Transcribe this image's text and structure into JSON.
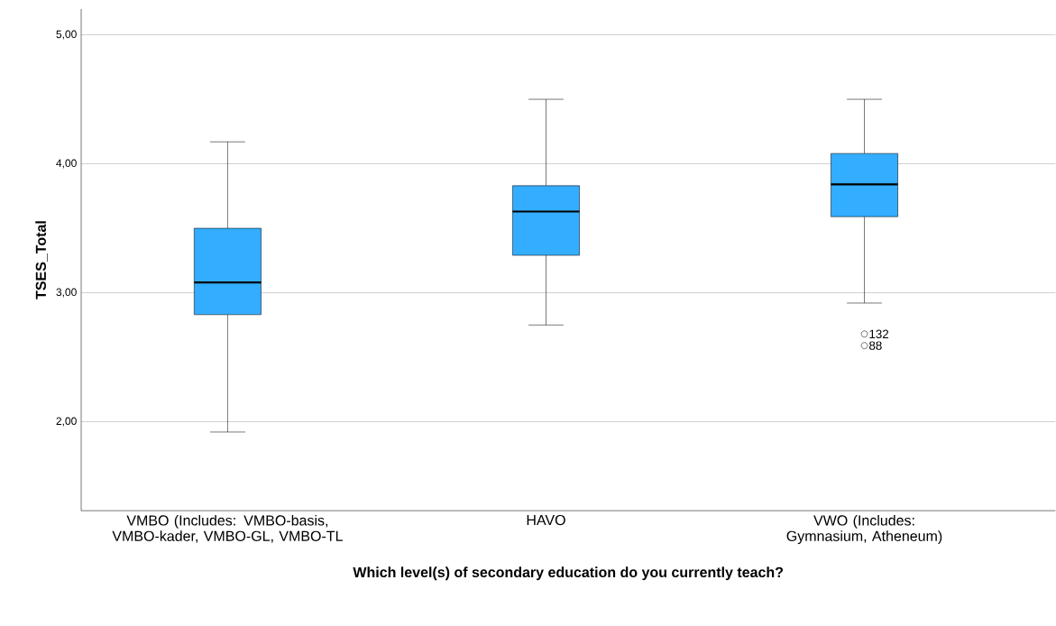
{
  "chart_data": {
    "type": "box",
    "xlabel": "Which level(s) of secondary education do you currently teach?",
    "ylabel": "TSES_Total",
    "categories": [
      "VMBO (Includes: VMBO-basis, VMBO-kader, VMBO-GL, VMBO-TL",
      "HAVO",
      "VWO (Includes: Gymnasium, Atheneum)"
    ],
    "boxes": [
      {
        "low": 1.92,
        "q1": 2.83,
        "median": 3.08,
        "q3": 3.5,
        "high": 4.17
      },
      {
        "low": 2.75,
        "q1": 3.29,
        "median": 3.63,
        "q3": 3.83,
        "high": 4.5
      },
      {
        "low": 2.92,
        "q1": 3.59,
        "median": 3.84,
        "q3": 4.08,
        "high": 4.5,
        "outliers": [
          2.68,
          2.59
        ]
      }
    ],
    "color": "#33adff",
    "ylim": [
      1.31,
      5.2
    ],
    "yticks": [
      {
        "value": 2,
        "label": "2,00"
      },
      {
        "value": 3,
        "label": "3,00"
      },
      {
        "value": 4,
        "label": "4,00"
      },
      {
        "value": 5,
        "label": "5,00"
      }
    ],
    "grid": "y",
    "annotations": [
      "132",
      "88"
    ]
  }
}
